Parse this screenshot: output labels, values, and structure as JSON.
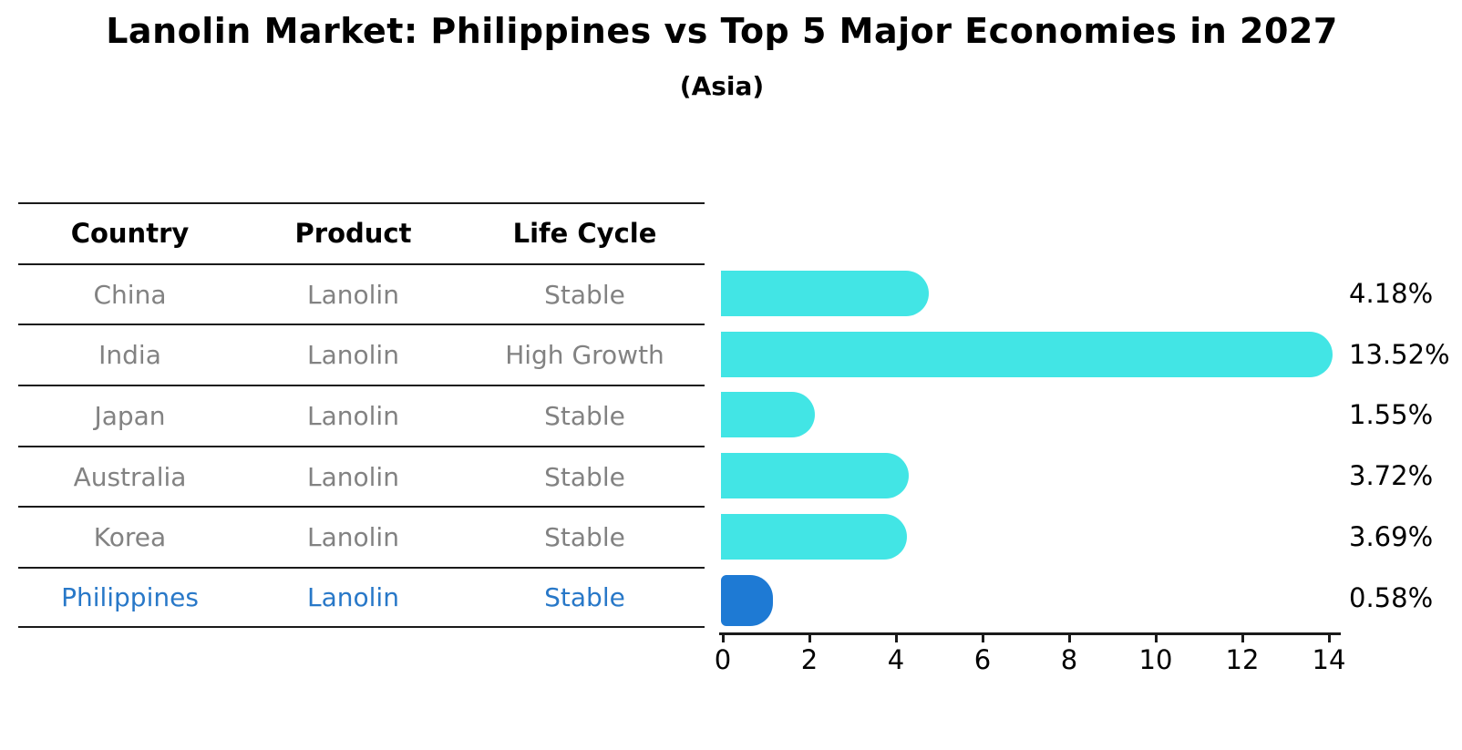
{
  "header": {
    "title": "Lanolin Market: Philippines vs Top 5 Major Economies in 2027",
    "subtitle": "(Asia)"
  },
  "table": {
    "columns": [
      "Country",
      "Product",
      "Life Cycle"
    ],
    "rows": [
      {
        "country": "China",
        "product": "Lanolin",
        "life_cycle": "Stable",
        "highlight": false
      },
      {
        "country": "India",
        "product": "Lanolin",
        "life_cycle": "High Growth",
        "highlight": false
      },
      {
        "country": "Japan",
        "product": "Lanolin",
        "life_cycle": "Stable",
        "highlight": false
      },
      {
        "country": "Australia",
        "product": "Lanolin",
        "life_cycle": "Stable",
        "highlight": false
      },
      {
        "country": "Korea",
        "product": "Lanolin",
        "life_cycle": "Stable",
        "highlight": true
      }
    ]
  },
  "chart_data": {
    "type": "bar",
    "orientation": "horizontal",
    "title": "Lanolin Market: Philippines vs Top 5 Major Economies in 2027",
    "subtitle": "(Asia)",
    "categories": [
      "China",
      "India",
      "Japan",
      "Australia",
      "Korea",
      "Philippines"
    ],
    "values": [
      4.18,
      13.52,
      1.55,
      3.72,
      3.69,
      0.58
    ],
    "value_labels": [
      "4.18%",
      "13.52%",
      "1.55%",
      "3.72%",
      "3.69%",
      "0.58%"
    ],
    "xlabel": "",
    "ylabel": "",
    "xlim": [
      0,
      14
    ],
    "xticks": [
      0,
      2,
      4,
      6,
      8,
      10,
      12,
      14
    ],
    "grid": false,
    "legend": false,
    "bar_color": "#42E5E5",
    "highlight_color": "#1E7AD4",
    "highlight_index": 5,
    "highlight_style": "dashed-outline"
  },
  "colors": {
    "bar_cyan": "#42E5E5",
    "bar_blue": "#1E7AD4",
    "highlight_text": "#2878C8",
    "table_text": "#828282",
    "line": "#1a1a1a",
    "background": "#ffffff"
  }
}
